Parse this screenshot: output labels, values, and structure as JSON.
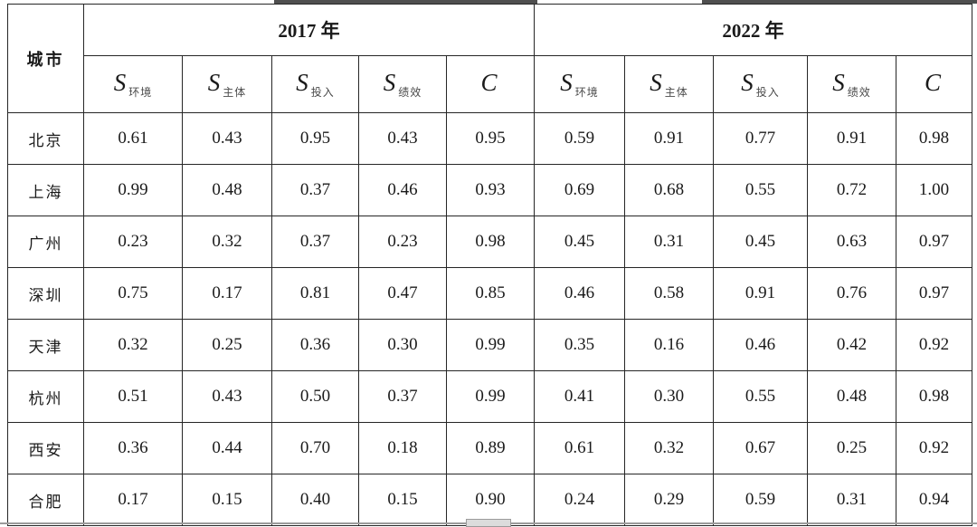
{
  "colors": {
    "background": "#ffffff",
    "text": "#1a1a1a",
    "border": "#262626"
  },
  "chart_data": {
    "type": "table",
    "corner_header": "城市",
    "groups": [
      {
        "label": "2017 年",
        "columns": [
          {
            "symbol": "S",
            "subscript": "环境"
          },
          {
            "symbol": "S",
            "subscript": "主体"
          },
          {
            "symbol": "S",
            "subscript": "投入"
          },
          {
            "symbol": "S",
            "subscript": "绩效"
          },
          {
            "symbol": "C",
            "subscript": ""
          }
        ]
      },
      {
        "label": "2022 年",
        "columns": [
          {
            "symbol": "S",
            "subscript": "环境"
          },
          {
            "symbol": "S",
            "subscript": "主体"
          },
          {
            "symbol": "S",
            "subscript": "投入"
          },
          {
            "symbol": "S",
            "subscript": "绩效"
          },
          {
            "symbol": "C",
            "subscript": ""
          }
        ]
      }
    ],
    "rows": [
      {
        "city": "北京",
        "values_2017": [
          "0.61",
          "0.43",
          "0.95",
          "0.43",
          "0.95"
        ],
        "values_2022": [
          "0.59",
          "0.91",
          "0.77",
          "0.91",
          "0.98"
        ]
      },
      {
        "city": "上海",
        "values_2017": [
          "0.99",
          "0.48",
          "0.37",
          "0.46",
          "0.93"
        ],
        "values_2022": [
          "0.69",
          "0.68",
          "0.55",
          "0.72",
          "1.00"
        ]
      },
      {
        "city": "广州",
        "values_2017": [
          "0.23",
          "0.32",
          "0.37",
          "0.23",
          "0.98"
        ],
        "values_2022": [
          "0.45",
          "0.31",
          "0.45",
          "0.63",
          "0.97"
        ]
      },
      {
        "city": "深圳",
        "values_2017": [
          "0.75",
          "0.17",
          "0.81",
          "0.47",
          "0.85"
        ],
        "values_2022": [
          "0.46",
          "0.58",
          "0.91",
          "0.76",
          "0.97"
        ]
      },
      {
        "city": "天津",
        "values_2017": [
          "0.32",
          "0.25",
          "0.36",
          "0.30",
          "0.99"
        ],
        "values_2022": [
          "0.35",
          "0.16",
          "0.46",
          "0.42",
          "0.92"
        ]
      },
      {
        "city": "杭州",
        "values_2017": [
          "0.51",
          "0.43",
          "0.50",
          "0.37",
          "0.99"
        ],
        "values_2022": [
          "0.41",
          "0.30",
          "0.55",
          "0.48",
          "0.98"
        ]
      },
      {
        "city": "西安",
        "values_2017": [
          "0.36",
          "0.44",
          "0.70",
          "0.18",
          "0.89"
        ],
        "values_2022": [
          "0.61",
          "0.32",
          "0.67",
          "0.25",
          "0.92"
        ]
      },
      {
        "city": "合肥",
        "values_2017": [
          "0.17",
          "0.15",
          "0.40",
          "0.15",
          "0.90"
        ],
        "values_2022": [
          "0.24",
          "0.29",
          "0.59",
          "0.31",
          "0.94"
        ]
      }
    ]
  }
}
